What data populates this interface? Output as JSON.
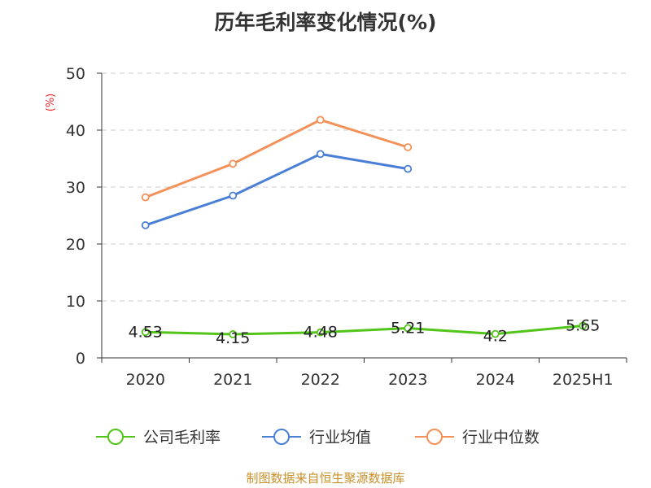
{
  "chart_data": {
    "type": "line",
    "title": "历年毛利率变化情况(%)",
    "ylabel": "(%)",
    "categories": [
      "2020",
      "2021",
      "2022",
      "2023",
      "2024",
      "2025H1"
    ],
    "ylim": [
      0,
      50
    ],
    "yticks": [
      "0",
      "10",
      "20",
      "30",
      "40",
      "50"
    ],
    "grid": true,
    "legend_position": "bottom",
    "series": [
      {
        "name": "公司毛利率",
        "color": "#52c41a",
        "values": [
          4.53,
          4.15,
          4.48,
          5.21,
          4.2,
          5.65
        ],
        "labels": [
          "4.53",
          "4.15",
          "4.48",
          "5.21",
          "4.2",
          "5.65"
        ]
      },
      {
        "name": "行业均值",
        "color": "#4a7fd6",
        "values": [
          23.3,
          28.5,
          35.8,
          33.2,
          null,
          null
        ]
      },
      {
        "name": "行业中位数",
        "color": "#f49158",
        "values": [
          28.2,
          34.1,
          41.8,
          37.0,
          null,
          null
        ]
      }
    ]
  },
  "footer": "制图数据来自恒生聚源数据库"
}
